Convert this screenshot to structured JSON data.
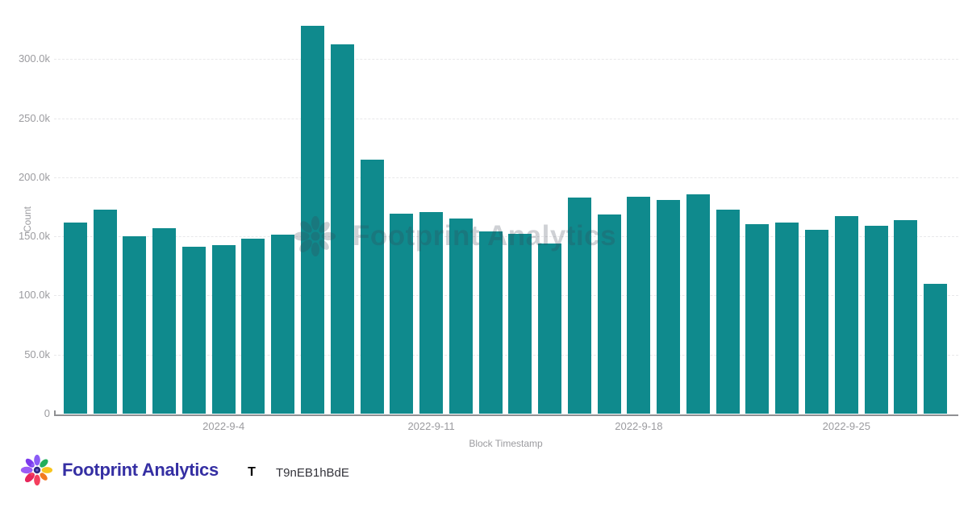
{
  "chart_data": {
    "type": "bar",
    "title": "",
    "xlabel": "Block Timestamp",
    "ylabel": "Count",
    "bar_color": "#0F8A8D",
    "categories": [
      "2022-8-30",
      "2022-8-31",
      "2022-9-1",
      "2022-9-2",
      "2022-9-3",
      "2022-9-4",
      "2022-9-5",
      "2022-9-6",
      "2022-9-7",
      "2022-9-8",
      "2022-9-9",
      "2022-9-10",
      "2022-9-11",
      "2022-9-12",
      "2022-9-13",
      "2022-9-14",
      "2022-9-15",
      "2022-9-16",
      "2022-9-17",
      "2022-9-18",
      "2022-9-19",
      "2022-9-20",
      "2022-9-21",
      "2022-9-22",
      "2022-9-23",
      "2022-9-24",
      "2022-9-25",
      "2022-9-26",
      "2022-9-27",
      "2022-9-28"
    ],
    "values": [
      161500,
      172400,
      150000,
      156700,
      141000,
      142400,
      147800,
      151200,
      328000,
      312400,
      214800,
      169000,
      170800,
      165100,
      154200,
      151900,
      143700,
      182700,
      168300,
      183300,
      181100,
      185600,
      172400,
      160600,
      161700,
      155800,
      167200,
      159200,
      163800,
      109800
    ],
    "x_tick_labels": [
      "2022-9-4",
      "2022-9-11",
      "2022-9-18",
      "2022-9-25"
    ],
    "x_tick_indices": [
      5,
      12,
      19,
      26
    ],
    "y_tick_values": [
      0,
      50000,
      100000,
      150000,
      200000,
      250000,
      300000
    ],
    "y_tick_labels": [
      "0",
      "50.0k",
      "100.0k",
      "150.0k",
      "200.0k",
      "250.0k",
      "300.0k"
    ],
    "ylim": [
      0,
      350000
    ],
    "grid": "horizontal-dashed",
    "legend": "none"
  },
  "watermark": {
    "icon": "footprint-flower-icon",
    "text": "Footprint Analytics"
  },
  "footer": {
    "logo_icon": "footprint-flower-icon",
    "brand": "Footprint Analytics",
    "avatar_letter": "T",
    "user_id": "T9nEB1hBdE"
  },
  "colors": {
    "bar": "#0F8A8D",
    "axis_text": "#9b9b9f",
    "grid_line": "#e8e8ea",
    "axis_line": "#8f9093",
    "brand_text": "#352FA3",
    "avatar_bg": "#DFDCF9",
    "avatar_letter": "#4B41B8",
    "user_id_text": "#33333a",
    "watermark_text": "#3c4353"
  }
}
